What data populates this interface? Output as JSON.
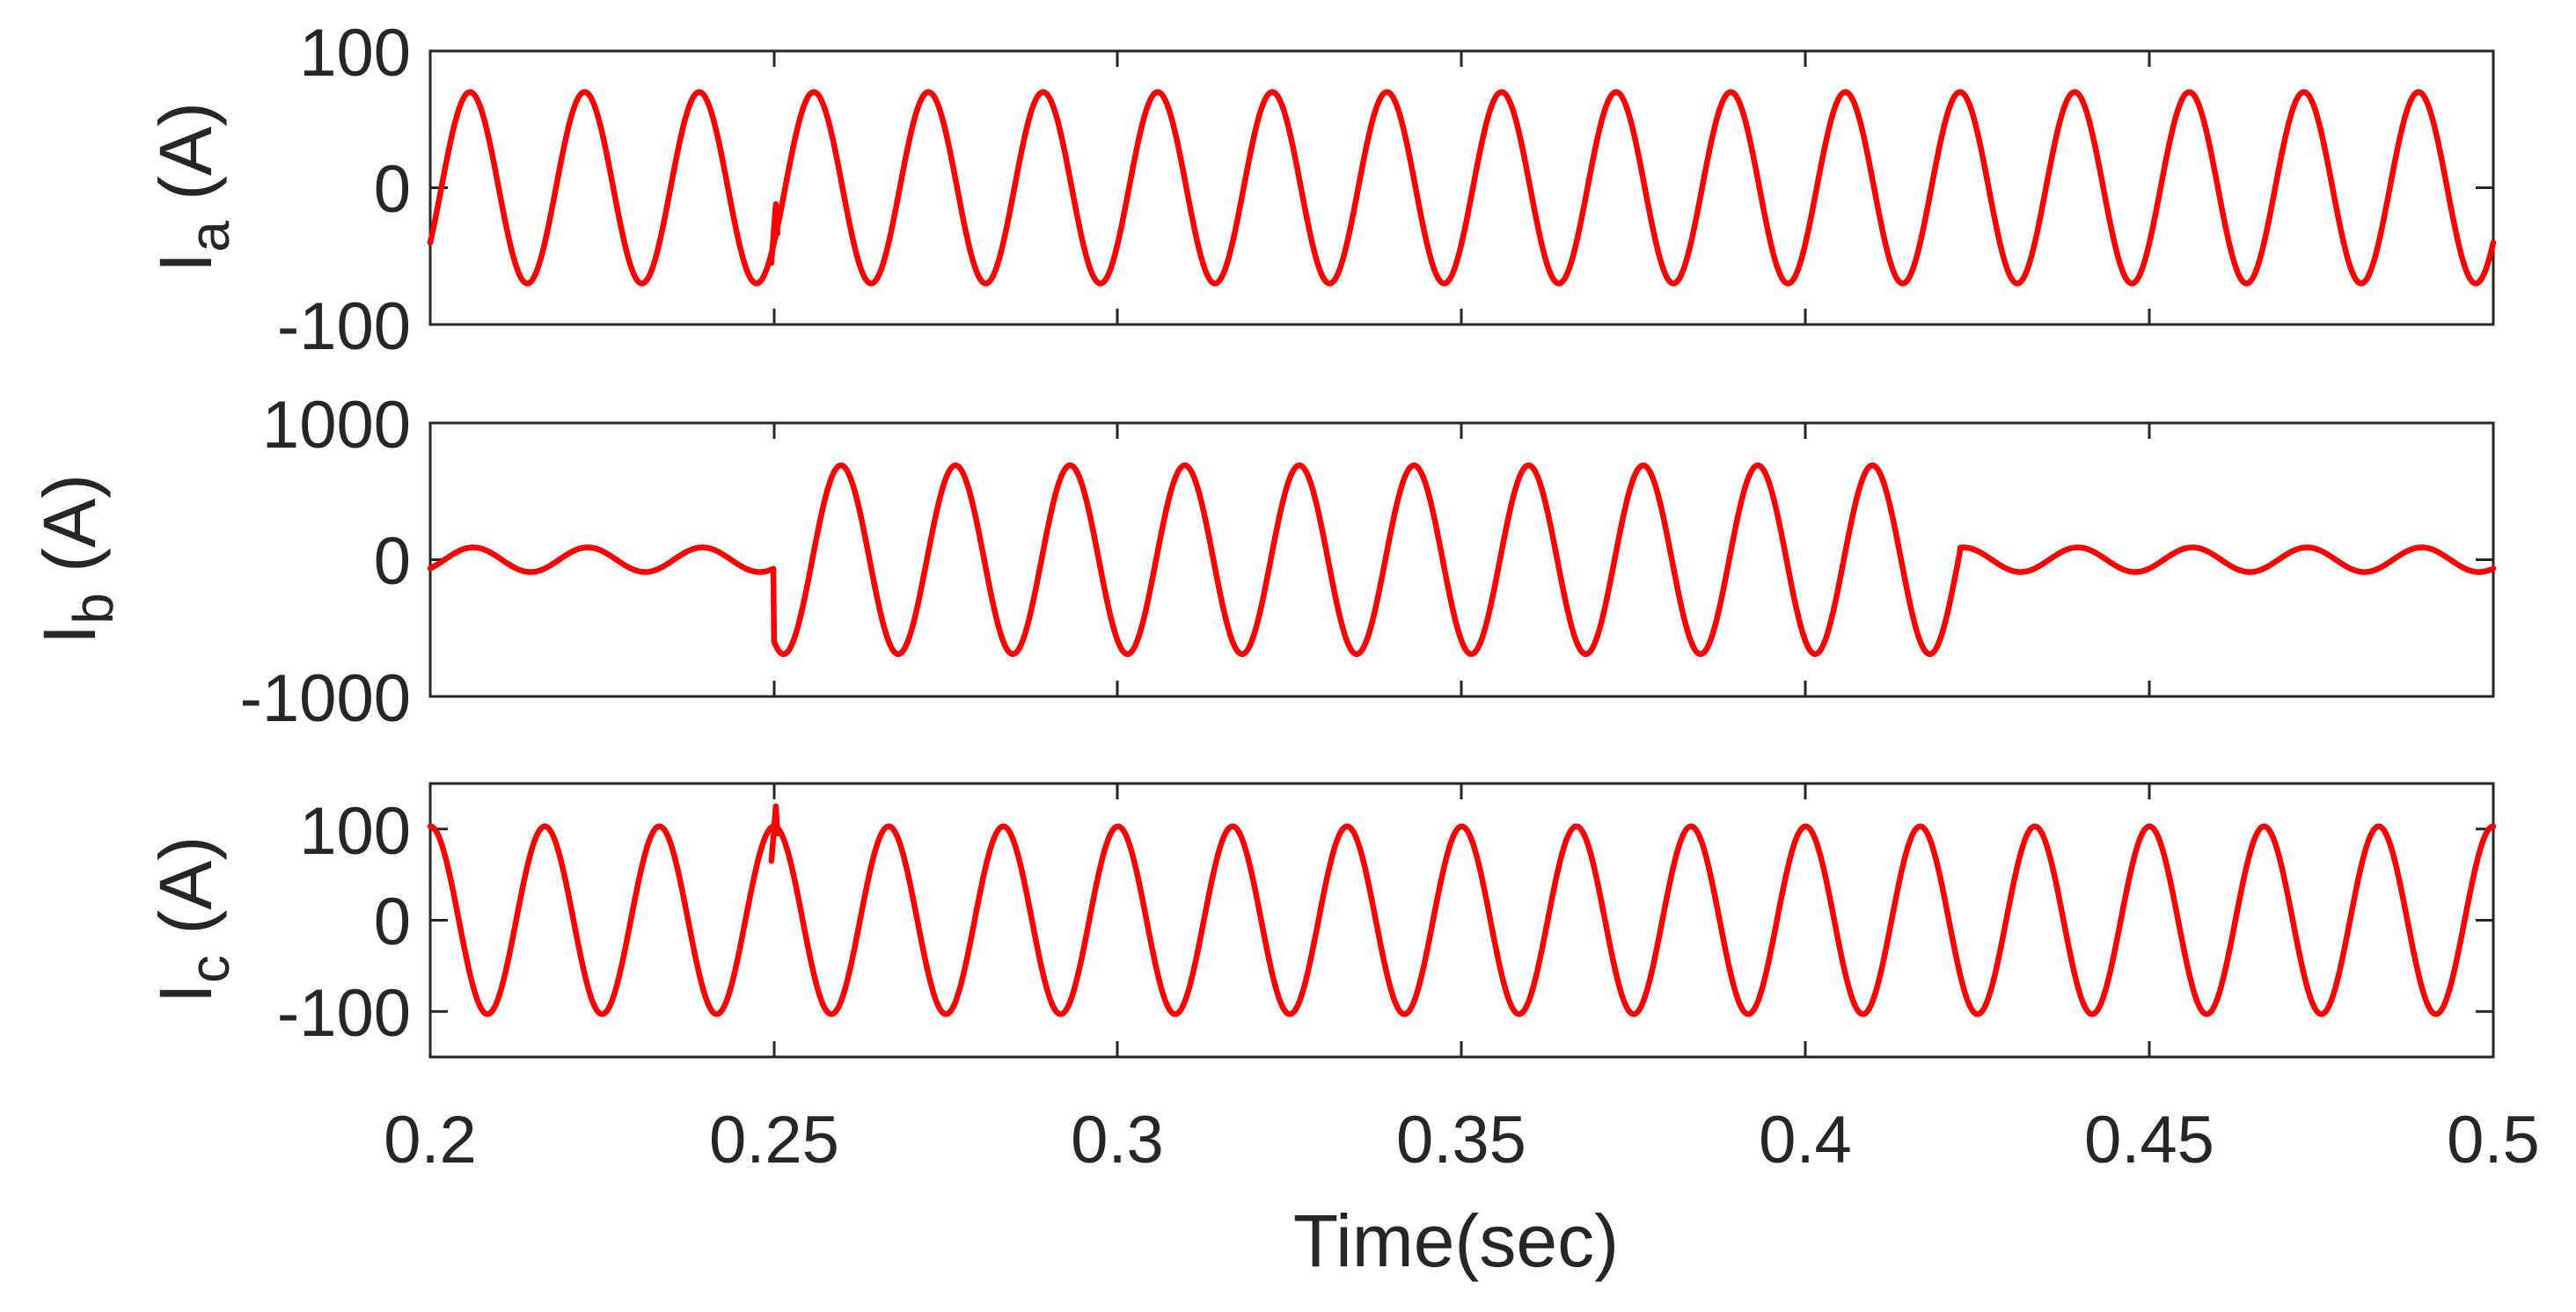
{
  "chart_data": {
    "type": "line",
    "line_color": "#ff0000",
    "xlabel": "Time(sec)",
    "xlim": [
      0.2,
      0.5
    ],
    "xticks": [
      0.2,
      0.25,
      0.3,
      0.35,
      0.4,
      0.45,
      0.5
    ],
    "xtick_labels": [
      "0.2",
      "0.25",
      "0.3",
      "0.35",
      "0.4",
      "0.45",
      "0.5"
    ],
    "subplots": [
      {
        "ylabel_main": "I",
        "ylabel_sub": "a",
        "ylabel_unit": " (A)",
        "ylim": [
          -100,
          100
        ],
        "yticks": [
          -100,
          0,
          100
        ],
        "ytick_labels": [
          "-100",
          "0",
          "100"
        ],
        "series": [
          {
            "name": "Ia",
            "frequency_hz": 60,
            "segments": [
              {
                "from": 0.2,
                "to": 0.25,
                "amplitude": 70,
                "phase_deg": -35
              },
              {
                "from": 0.25,
                "to": 0.5,
                "amplitude": 70,
                "phase_deg": -35
              }
            ],
            "transient": {
              "at": 0.25,
              "min": -55,
              "max": -12
            }
          }
        ]
      },
      {
        "ylabel_main": "I",
        "ylabel_sub": "b",
        "ylabel_unit": " (A)",
        "ylim": [
          -1000,
          1000
        ],
        "yticks": [
          -1000,
          0,
          1000
        ],
        "ytick_labels": [
          "-1000",
          "0",
          "1000"
        ],
        "series": [
          {
            "name": "Ib",
            "frequency_hz": 60,
            "segments": [
              {
                "from": 0.2,
                "to": 0.25,
                "amplitude": 90,
                "phase_deg": -45
              },
              {
                "from": 0.25,
                "to": 0.4225,
                "amplitude": 690,
                "phase_deg": -120
              },
              {
                "from": 0.4225,
                "to": 0.5,
                "amplitude": 90,
                "phase_deg": -45
              }
            ]
          }
        ]
      },
      {
        "ylabel_main": "I",
        "ylabel_sub": "c",
        "ylabel_unit": " (A)",
        "ylim": [
          -150,
          150
        ],
        "yticks": [
          -100,
          0,
          100
        ],
        "ytick_labels": [
          "-100",
          "0",
          "100"
        ],
        "series": [
          {
            "name": "Ic",
            "frequency_hz": 60,
            "segments": [
              {
                "from": 0.2,
                "to": 0.25,
                "amplitude": 103,
                "phase_deg": 90
              },
              {
                "from": 0.25,
                "to": 0.5,
                "amplitude": 103,
                "phase_deg": 90
              }
            ],
            "transient": {
              "at": 0.25,
              "min": 65,
              "max": 125
            }
          }
        ]
      }
    ]
  }
}
